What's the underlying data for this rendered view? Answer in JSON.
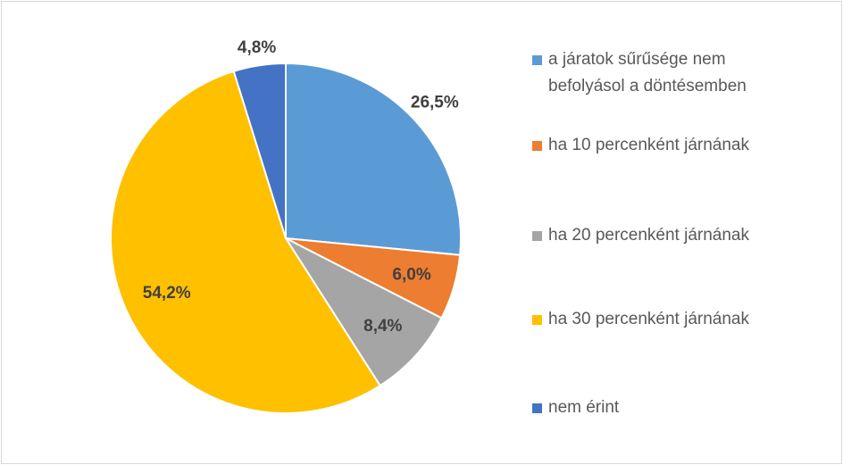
{
  "chart_data": {
    "type": "pie",
    "categories": [
      "a járatok sűrűsége nem befolyásol a döntésemben",
      "ha 10 percenként járnának",
      "ha 20 percenként járnának",
      "ha 30 percenként járnának",
      "nem érint"
    ],
    "values": [
      26.5,
      6.0,
      8.4,
      54.2,
      4.8
    ],
    "value_labels": [
      "26,5%",
      "6,0%",
      "8,4%",
      "54,2%",
      "4,8%"
    ],
    "colors": [
      "#5b9bd5",
      "#ed7d31",
      "#a5a5a5",
      "#ffc000",
      "#4472c4"
    ],
    "legend": "right"
  }
}
